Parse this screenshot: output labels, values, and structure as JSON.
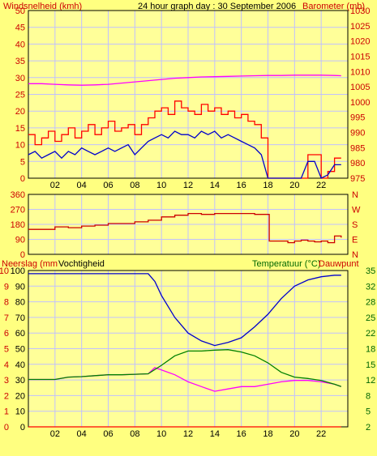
{
  "header": {
    "title": "24 hour graph day : 30 September 2006",
    "wind_label": "Windsnelheid (kmh)",
    "baro_label": "Barometer (mb)"
  },
  "bottom_header": {
    "rain_label": "Neerslag (mm",
    "hum_label": "Vochtigheid",
    "temp_label": "Temperatuur (°C)",
    "dew_label": "Dauwpunt"
  },
  "colors": {
    "background": "#ffff80",
    "plot_bg": "#ffff99",
    "grid": "#c0c0ff",
    "wind": "#ff0000",
    "wind_avg": "#0000cc",
    "barometer": "#ff00ff",
    "direction": "#cc0000",
    "humidity": "#0000cc",
    "temperature": "#008000",
    "dewpoint": "#ff00ff",
    "rain": "#ff0000",
    "red_text": "#cc0000",
    "green_text": "#006600",
    "text": "#000000"
  },
  "chart_data": [
    {
      "type": "line",
      "panel": "wind-barometer",
      "x_ticks": [
        "02",
        "04",
        "06",
        "08",
        "10",
        "12",
        "14",
        "16",
        "18",
        "20",
        "22"
      ],
      "xlim": [
        0,
        24
      ],
      "y_left": {
        "label": "Windsnelheid (kmh)",
        "ticks": [
          0,
          5,
          10,
          15,
          20,
          25,
          30,
          35,
          40,
          45,
          50
        ],
        "ylim": [
          0,
          50
        ]
      },
      "y_right": {
        "label": "Barometer (mb)",
        "ticks": [
          975,
          980,
          985,
          990,
          995,
          1000,
          1005,
          1010,
          1015,
          1020,
          1025,
          1030
        ],
        "ylim": [
          975,
          1030
        ]
      },
      "series": [
        {
          "name": "gust",
          "axis": "left",
          "x": [
            0,
            0.5,
            1,
            1.5,
            2,
            2.5,
            3,
            3.5,
            4,
            4.5,
            5,
            5.5,
            6,
            6.5,
            7,
            7.5,
            8,
            8.5,
            9,
            9.5,
            10,
            10.5,
            11,
            11.5,
            12,
            12.5,
            13,
            13.5,
            14,
            14.5,
            15,
            15.5,
            16,
            16.5,
            17,
            17.5,
            18,
            18.5,
            19,
            19.5,
            20,
            20.5,
            21,
            21.5,
            22,
            22.5,
            23,
            23.5
          ],
          "y": [
            13,
            10,
            12,
            14,
            11,
            13,
            15,
            12,
            14,
            16,
            13,
            15,
            17,
            14,
            15,
            16,
            13,
            16,
            18,
            20,
            21,
            19,
            23,
            21,
            20,
            19,
            22,
            20,
            21,
            19,
            20,
            18,
            19,
            17,
            16,
            12,
            0,
            0,
            0,
            0,
            0,
            0,
            7,
            7,
            0,
            2,
            6,
            6
          ]
        },
        {
          "name": "average",
          "axis": "left",
          "x": [
            0,
            0.5,
            1,
            1.5,
            2,
            2.5,
            3,
            3.5,
            4,
            4.5,
            5,
            5.5,
            6,
            6.5,
            7,
            7.5,
            8,
            8.5,
            9,
            9.5,
            10,
            10.5,
            11,
            11.5,
            12,
            12.5,
            13,
            13.5,
            14,
            14.5,
            15,
            15.5,
            16,
            16.5,
            17,
            17.5,
            18,
            18.5,
            19,
            19.5,
            20,
            20.5,
            21,
            21.5,
            22,
            22.5,
            23,
            23.5
          ],
          "y": [
            7,
            8,
            6,
            7,
            8,
            6,
            8,
            7,
            9,
            8,
            7,
            8,
            9,
            8,
            9,
            10,
            7,
            9,
            11,
            12,
            13,
            12,
            14,
            13,
            13,
            12,
            14,
            13,
            14,
            12,
            13,
            12,
            11,
            10,
            9,
            7,
            0,
            0,
            0,
            0,
            0,
            0,
            5,
            5,
            0,
            1,
            4,
            4
          ]
        },
        {
          "name": "barometer",
          "axis": "right",
          "x": [
            0,
            1,
            2,
            3,
            4,
            5,
            6,
            7,
            8,
            9,
            10,
            11,
            12,
            13,
            14,
            15,
            16,
            17,
            18,
            19,
            20,
            21,
            22,
            23,
            23.5
          ],
          "y": [
            1006,
            1006,
            1005.8,
            1005.6,
            1005.5,
            1005.6,
            1005.8,
            1006.2,
            1006.6,
            1007,
            1007.4,
            1007.8,
            1008,
            1008.2,
            1008.3,
            1008.4,
            1008.5,
            1008.6,
            1008.7,
            1008.7,
            1008.8,
            1008.8,
            1008.8,
            1008.7,
            1008.6
          ]
        }
      ]
    },
    {
      "type": "line",
      "panel": "wind-direction",
      "x_ticks": [],
      "xlim": [
        0,
        24
      ],
      "y_left": {
        "ticks": [
          0,
          90,
          180,
          270,
          360
        ],
        "ylim": [
          0,
          360
        ]
      },
      "y_right": {
        "ticks": [
          "N",
          "E",
          "S",
          "W",
          "N"
        ]
      },
      "series": [
        {
          "name": "direction",
          "x": [
            0,
            1,
            2,
            3,
            4,
            5,
            6,
            7,
            8,
            9,
            10,
            11,
            12,
            13,
            14,
            15,
            16,
            17,
            17.9,
            18.1,
            19,
            19.5,
            20,
            20.5,
            21,
            21.5,
            22,
            22.5,
            23,
            23.5
          ],
          "y": [
            150,
            150,
            165,
            160,
            170,
            175,
            185,
            185,
            195,
            205,
            225,
            235,
            245,
            240,
            245,
            245,
            245,
            240,
            240,
            80,
            80,
            70,
            80,
            85,
            80,
            75,
            80,
            70,
            110,
            100
          ]
        }
      ]
    },
    {
      "type": "line",
      "panel": "rain-humidity-temperature",
      "x_ticks": [
        "02",
        "04",
        "06",
        "08",
        "10",
        "12",
        "14",
        "16",
        "18",
        "20",
        "22"
      ],
      "xlim": [
        0,
        24
      ],
      "y_rain": {
        "label": "Neerslag (mm",
        "ticks": [
          0,
          1,
          2,
          3,
          4,
          5,
          6,
          7,
          8,
          9,
          10
        ],
        "ylim": [
          0,
          10
        ]
      },
      "y_humidity": {
        "label": "Vochtigheid",
        "ticks": [
          0,
          10,
          20,
          30,
          40,
          50,
          60,
          70,
          80,
          90,
          100
        ],
        "ylim": [
          0,
          100
        ]
      },
      "y_right": {
        "label": "Temperatuur (°C)",
        "ticks": [
          2,
          5,
          8,
          12,
          15,
          18,
          22,
          25,
          28,
          32,
          35
        ],
        "ylim": [
          2,
          35
        ]
      },
      "series": [
        {
          "name": "humidity",
          "axis": "humidity",
          "x": [
            0,
            1,
            2,
            3,
            4,
            5,
            6,
            7,
            8,
            9,
            9.5,
            10,
            11,
            12,
            13,
            14,
            15,
            16,
            17,
            18,
            19,
            20,
            21,
            22,
            23,
            23.5
          ],
          "y": [
            98,
            98,
            98,
            98,
            98,
            98,
            98,
            98,
            98,
            98,
            93,
            84,
            70,
            60,
            55,
            52,
            54,
            57,
            64,
            72,
            82,
            90,
            94,
            96,
            97,
            97
          ]
        },
        {
          "name": "temperature",
          "axis": "right",
          "x": [
            0,
            1,
            2,
            3,
            4,
            5,
            6,
            7,
            8,
            9,
            10,
            11,
            12,
            13,
            14,
            15,
            16,
            17,
            18,
            19,
            20,
            21,
            22,
            23,
            23.5
          ],
          "y": [
            12,
            12,
            12,
            12.5,
            12.6,
            12.8,
            13,
            13,
            13.1,
            13.2,
            15,
            17,
            18,
            18,
            18.2,
            18.3,
            17.8,
            17,
            15.5,
            13.5,
            12.5,
            12.2,
            11.8,
            11,
            10.5
          ]
        },
        {
          "name": "dewpoint",
          "axis": "right",
          "x": [
            0,
            1,
            2,
            3,
            4,
            5,
            6,
            7,
            8,
            9,
            9.5,
            10,
            11,
            12,
            13,
            14,
            15,
            16,
            17,
            18,
            19,
            20,
            21,
            22,
            23,
            23.5
          ],
          "y": [
            12,
            12,
            12,
            12.5,
            12.6,
            12.8,
            13,
            13,
            13.1,
            13.2,
            14.5,
            14,
            13,
            11.5,
            10.5,
            9.5,
            10,
            10.5,
            10.5,
            11,
            11.5,
            11.8,
            11.8,
            11.5,
            11,
            10.5
          ]
        },
        {
          "name": "rain",
          "axis": "rain",
          "x": [
            0,
            23.5
          ],
          "y": [
            0,
            0
          ]
        }
      ]
    }
  ]
}
